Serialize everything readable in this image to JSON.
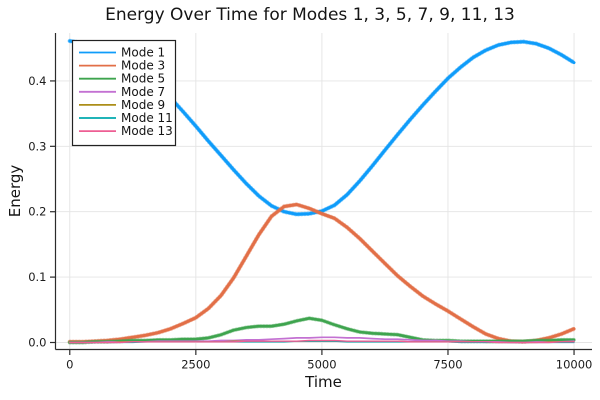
{
  "chart_data": {
    "type": "line",
    "title": "Energy Over Time for Modes 1, 3, 5, 7, 9, 11, 13",
    "xlabel": "Time",
    "ylabel": "Energy",
    "xlim": [
      -283,
      10356
    ],
    "ylim": [
      -0.0107,
      0.4733
    ],
    "x_ticks": [
      0,
      2500,
      5000,
      7500,
      10000
    ],
    "x_tick_labels": [
      "0",
      "2500",
      "5000",
      "7500",
      "10000"
    ],
    "y_ticks": [
      0.0,
      0.1,
      0.2,
      0.3,
      0.4
    ],
    "y_tick_labels": [
      "0.0",
      "0.1",
      "0.2",
      "0.3",
      "0.4"
    ],
    "grid": true,
    "legend_position": "top-left",
    "x": [
      0,
      250,
      500,
      750,
      1000,
      1250,
      1500,
      1750,
      2000,
      2250,
      2500,
      2750,
      3000,
      3250,
      3500,
      3750,
      4000,
      4250,
      4500,
      4750,
      5000,
      5250,
      5500,
      5750,
      6000,
      6250,
      6500,
      6750,
      7000,
      7250,
      7500,
      7750,
      8000,
      8250,
      8500,
      8750,
      9000,
      9250,
      9500,
      9750,
      10000
    ],
    "series": [
      {
        "name": "Mode 1",
        "color": "#0F9CFA",
        "values": [
          0.461,
          0.458,
          0.453,
          0.446,
          0.436,
          0.424,
          0.409,
          0.392,
          0.374,
          0.353,
          0.331,
          0.308,
          0.286,
          0.264,
          0.243,
          0.224,
          0.209,
          0.2,
          0.196,
          0.197,
          0.201,
          0.21,
          0.226,
          0.247,
          0.27,
          0.294,
          0.318,
          0.341,
          0.363,
          0.384,
          0.404,
          0.421,
          0.436,
          0.447,
          0.455,
          0.459,
          0.46,
          0.457,
          0.45,
          0.44,
          0.428
        ]
      },
      {
        "name": "Mode 3",
        "color": "#E26F47",
        "values": [
          0.001,
          0.001,
          0.002,
          0.003,
          0.005,
          0.008,
          0.011,
          0.015,
          0.021,
          0.029,
          0.038,
          0.052,
          0.072,
          0.099,
          0.132,
          0.165,
          0.193,
          0.208,
          0.211,
          0.205,
          0.197,
          0.19,
          0.176,
          0.159,
          0.14,
          0.121,
          0.102,
          0.086,
          0.071,
          0.059,
          0.048,
          0.036,
          0.024,
          0.013,
          0.006,
          0.002,
          0.001,
          0.003,
          0.007,
          0.013,
          0.021
        ]
      },
      {
        "name": "Mode 5",
        "color": "#3EA44E",
        "values": [
          0.0,
          0.0,
          0.001,
          0.001,
          0.002,
          0.003,
          0.003,
          0.004,
          0.004,
          0.005,
          0.005,
          0.007,
          0.012,
          0.019,
          0.023,
          0.025,
          0.025,
          0.028,
          0.033,
          0.037,
          0.034,
          0.027,
          0.021,
          0.016,
          0.014,
          0.013,
          0.012,
          0.008,
          0.004,
          0.003,
          0.003,
          0.002,
          0.002,
          0.002,
          0.002,
          0.002,
          0.002,
          0.003,
          0.003,
          0.004,
          0.004
        ]
      },
      {
        "name": "Mode 7",
        "color": "#C371D2",
        "values": [
          0.0,
          0.0,
          0.0,
          0.001,
          0.001,
          0.001,
          0.001,
          0.002,
          0.002,
          0.002,
          0.002,
          0.002,
          0.003,
          0.003,
          0.004,
          0.004,
          0.005,
          0.006,
          0.007,
          0.007,
          0.008,
          0.008,
          0.007,
          0.007,
          0.006,
          0.005,
          0.005,
          0.004,
          0.003,
          0.003,
          0.002,
          0.002,
          0.001,
          0.001,
          0.001,
          0.0,
          0.0,
          0.001,
          0.001,
          0.001,
          0.002
        ]
      },
      {
        "name": "Mode 9",
        "color": "#AC8E18",
        "values": [
          0.0,
          0.0,
          0.0,
          0.0,
          0.001,
          0.001,
          0.001,
          0.001,
          0.001,
          0.001,
          0.001,
          0.001,
          0.001,
          0.002,
          0.002,
          0.002,
          0.002,
          0.002,
          0.002,
          0.002,
          0.002,
          0.002,
          0.002,
          0.002,
          0.002,
          0.002,
          0.002,
          0.001,
          0.001,
          0.001,
          0.001,
          0.001,
          0.001,
          0.0,
          0.0,
          0.0,
          0.0,
          0.0,
          0.001,
          0.001,
          0.001
        ]
      },
      {
        "name": "Mode 11",
        "color": "#00AAAE",
        "values": [
          0.0,
          0.0,
          0.0,
          0.0,
          0.0,
          0.0,
          0.001,
          0.001,
          0.001,
          0.001,
          0.001,
          0.001,
          0.001,
          0.001,
          0.001,
          0.001,
          0.001,
          0.001,
          0.002,
          0.002,
          0.002,
          0.002,
          0.001,
          0.001,
          0.001,
          0.001,
          0.001,
          0.001,
          0.001,
          0.001,
          0.001,
          0.0,
          0.0,
          0.0,
          0.0,
          0.0,
          0.0,
          0.0,
          0.0,
          0.0,
          0.0
        ]
      },
      {
        "name": "Mode 13",
        "color": "#ED5E93",
        "values": [
          0.0,
          0.0,
          0.0,
          0.0,
          0.0,
          0.001,
          0.001,
          0.001,
          0.001,
          0.001,
          0.001,
          0.001,
          0.001,
          0.001,
          0.002,
          0.002,
          0.002,
          0.002,
          0.002,
          0.003,
          0.003,
          0.003,
          0.002,
          0.002,
          0.002,
          0.002,
          0.002,
          0.001,
          0.001,
          0.001,
          0.001,
          0.001,
          0.001,
          0.001,
          0.0,
          0.0,
          0.0,
          0.0,
          0.0,
          0.001,
          0.001
        ]
      }
    ],
    "style": {
      "grid_color": "#E4E4E4",
      "spine_color": "#2B2B2B",
      "tick_label_color": "#1C1C1C",
      "legend_background": "#FFFFFF",
      "legend_border": "#222222",
      "plot_background": "#FFFFFF"
    }
  }
}
